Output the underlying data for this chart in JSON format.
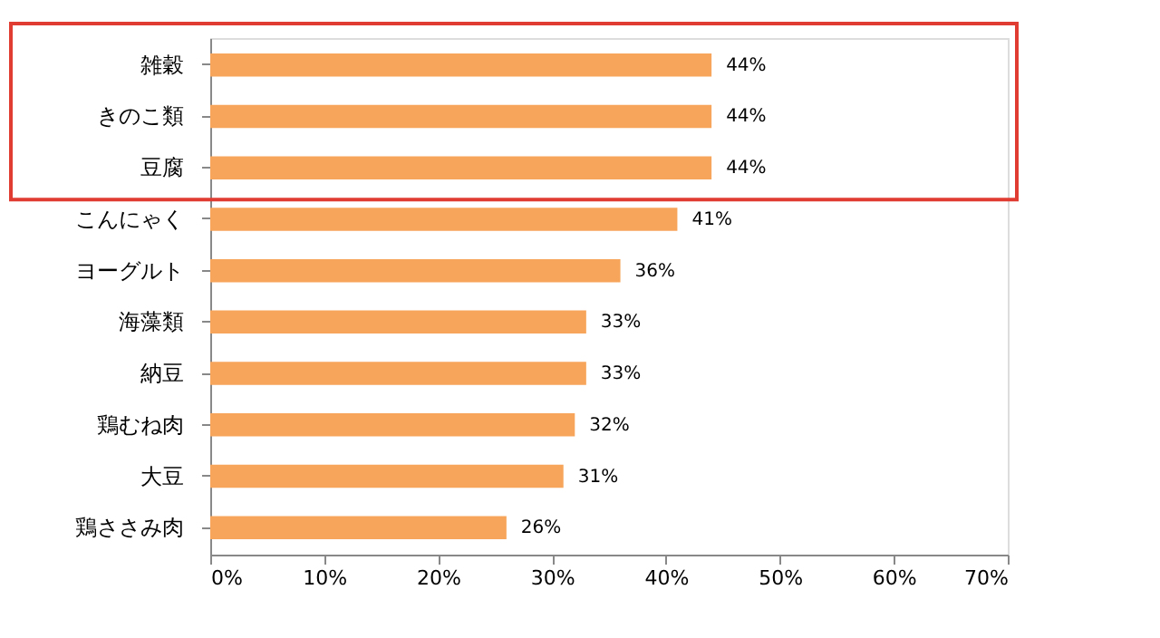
{
  "chart_data": {
    "type": "bar",
    "orientation": "horizontal",
    "categories": [
      "雑穀",
      "きのこ類",
      "豆腐",
      "こんにゃく",
      "ヨーグルト",
      "海藻類",
      "納豆",
      "鶏むね肉",
      "大豆",
      "鶏ささみ肉"
    ],
    "values": [
      44,
      44,
      44,
      41,
      36,
      33,
      33,
      32,
      31,
      26
    ],
    "value_labels": [
      "44%",
      "44%",
      "44%",
      "41%",
      "36%",
      "33%",
      "33%",
      "32%",
      "31%",
      "26%"
    ],
    "color": "#f7a55a",
    "xlim": [
      0,
      70
    ],
    "xticks": [
      {
        "value": 0,
        "label": "0%"
      },
      {
        "value": 10,
        "label": "10%"
      },
      {
        "value": 20,
        "label": "20%"
      },
      {
        "value": 30,
        "label": "30%"
      },
      {
        "value": 40,
        "label": "40%"
      },
      {
        "value": 50,
        "label": "50%"
      },
      {
        "value": 60,
        "label": "60%"
      },
      {
        "value": 70,
        "label": "70%"
      }
    ],
    "grid": false
  }
}
